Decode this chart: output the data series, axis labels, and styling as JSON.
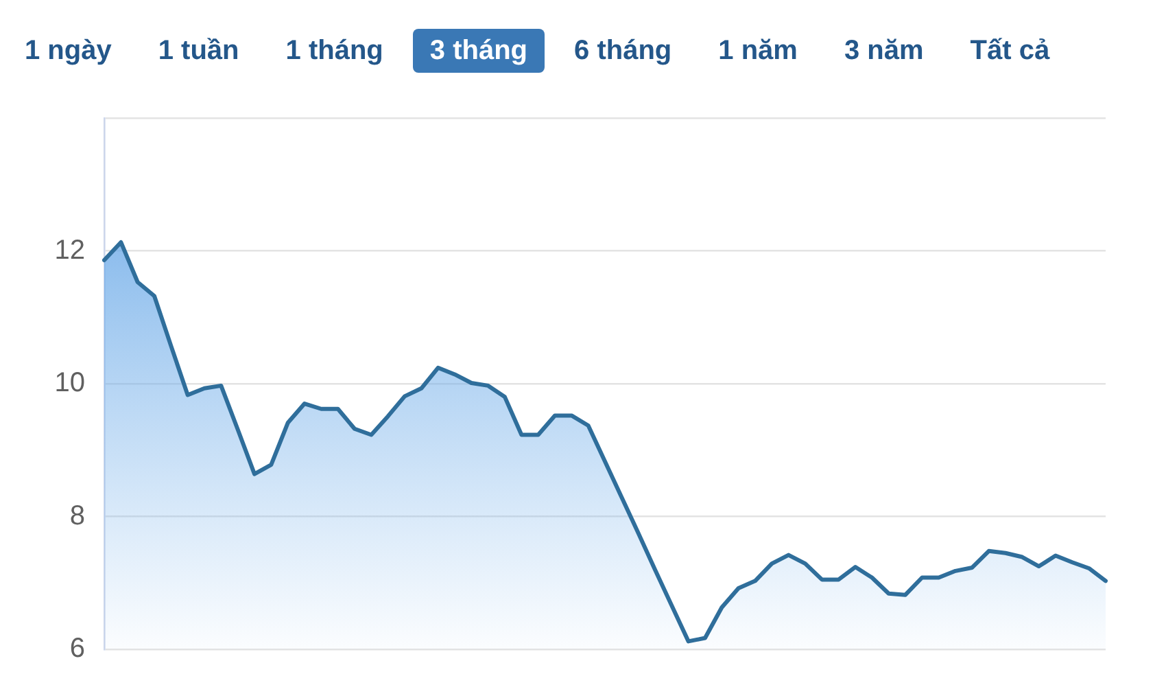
{
  "chart_data": {
    "type": "area",
    "annotations": [
      "1 ngày",
      "1 tuần",
      "1 tháng",
      "3 tháng",
      "6 tháng",
      "1 năm",
      "3 năm",
      "Tất cả"
    ],
    "categories": [
      null,
      null,
      null,
      null,
      null,
      null,
      null,
      null,
      null,
      null,
      null,
      null,
      null,
      null,
      null,
      null,
      null,
      null,
      null,
      null,
      null,
      null,
      null,
      null,
      null,
      null,
      null,
      null,
      null,
      null,
      null,
      null,
      null,
      null,
      null,
      null,
      null,
      null,
      null,
      null,
      null,
      null,
      null,
      null,
      null,
      null,
      null,
      null,
      null,
      null,
      null,
      null,
      null,
      null,
      null,
      null,
      null,
      null,
      null,
      null,
      null
    ],
    "values": [
      11.86,
      12.13,
      11.53,
      11.32,
      10.57,
      9.83,
      9.93,
      9.97,
      9.31,
      8.64,
      8.78,
      9.41,
      9.7,
      9.62,
      9.62,
      9.32,
      9.23,
      9.51,
      9.81,
      9.93,
      10.24,
      10.14,
      10.01,
      9.97,
      9.8,
      9.23,
      9.23,
      9.52,
      9.52,
      9.37,
      8.83,
      8.29,
      7.75,
      7.2,
      6.66,
      6.12,
      6.17,
      6.63,
      6.92,
      7.03,
      7.29,
      7.42,
      7.29,
      7.05,
      7.05,
      7.24,
      7.08,
      6.84,
      6.82,
      7.08,
      7.08,
      7.18,
      7.23,
      7.48,
      7.45,
      7.39,
      7.25,
      7.41,
      7.31,
      7.22,
      7.03
    ],
    "color": "#2f6e9b",
    "ylim": [
      6,
      14
    ],
    "yticks": [
      6,
      8,
      10,
      12,
      {
        "value": 14,
        "label": null
      }
    ],
    "grid": "y",
    "tick_labels": "y"
  }
}
